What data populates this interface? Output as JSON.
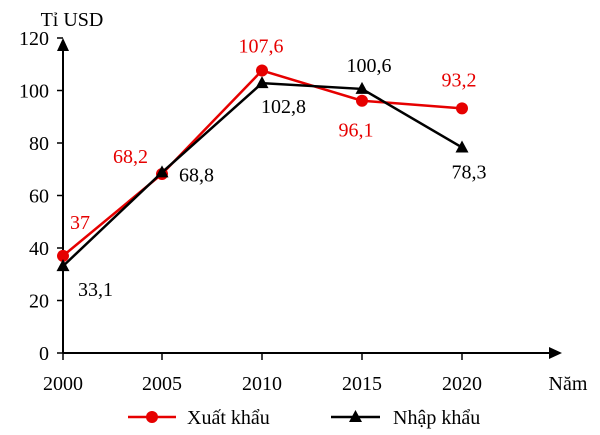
{
  "chart_data": {
    "type": "line",
    "ylabel": "Tỉ USD",
    "xlabel": "Năm",
    "ylim": [
      0,
      120
    ],
    "yticks": [
      0,
      20,
      40,
      60,
      80,
      100,
      120
    ],
    "yticks_text": [
      "0",
      "20",
      "40",
      "60",
      "80",
      "100",
      "120"
    ],
    "categories": [
      "2000",
      "2005",
      "2010",
      "2015",
      "2020"
    ],
    "grid": false,
    "legend_position": "bottom",
    "series": [
      {
        "name": "Xuất khẩu",
        "values": [
          37,
          68.2,
          107.6,
          96.1,
          93.2
        ],
        "labels": [
          "37",
          "68,2",
          "107,6",
          "96,1",
          "93,2"
        ],
        "color": "#e60000",
        "marker": "circle"
      },
      {
        "name": "Nhập khẩu",
        "values": [
          33.1,
          68.8,
          102.8,
          100.6,
          78.3
        ],
        "labels": [
          "33,1",
          "68,8",
          "102,8",
          "100,6",
          "78,3"
        ],
        "color": "#000000",
        "marker": "triangle"
      }
    ]
  }
}
